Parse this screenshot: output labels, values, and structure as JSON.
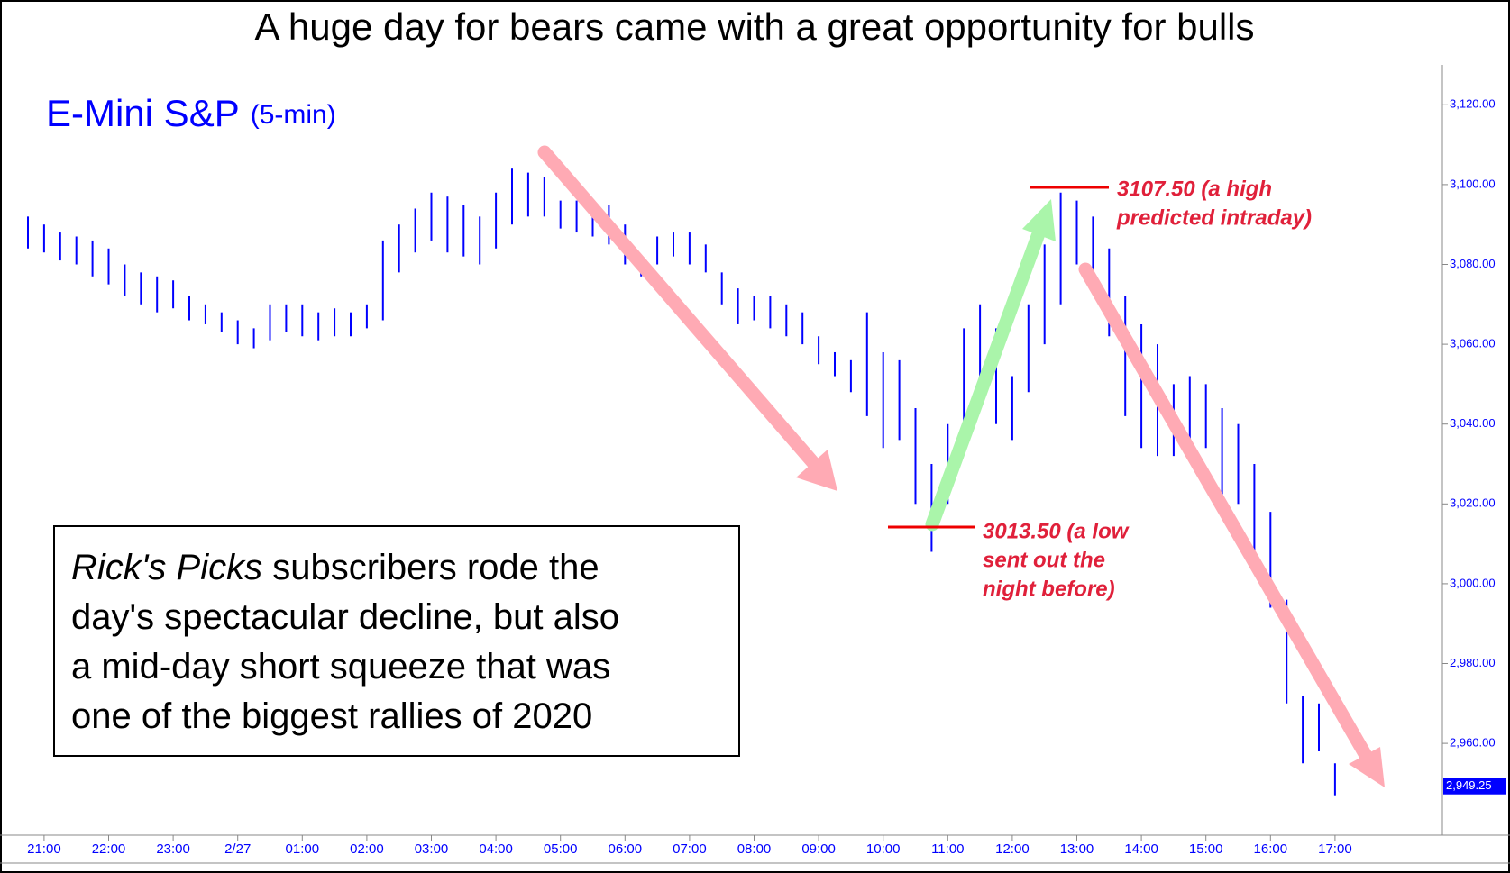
{
  "chart_data": {
    "type": "ohlc",
    "title": "A huge day for bears came with a great opportunity for bulls",
    "instrument": "E-Mini S&P",
    "interval": "(5-min)",
    "color": "#0000ff",
    "categories": [
      null,
      "21:00",
      null,
      null,
      null,
      "22:00",
      null,
      null,
      null,
      "23:00",
      null,
      null,
      null,
      "2/27",
      null,
      null,
      null,
      "01:00",
      null,
      null,
      null,
      "02:00",
      null,
      null,
      null,
      "03:00",
      null,
      null,
      null,
      "04:00",
      null,
      null,
      null,
      "05:00",
      null,
      null,
      null,
      "06:00",
      null,
      null,
      null,
      "07:00",
      null,
      null,
      null,
      "08:00",
      null,
      null,
      null,
      "09:00",
      null,
      null,
      null,
      "10:00",
      null,
      null,
      null,
      "11:00",
      null,
      null,
      null,
      "12:00",
      null,
      null,
      null,
      "13:00",
      null,
      null,
      null,
      "14:00",
      null,
      null,
      null,
      "15:00",
      null,
      null,
      null,
      "16:00",
      null,
      null,
      null,
      "17:00"
    ],
    "high": [
      3092,
      3090,
      3088,
      3087,
      3086,
      3084,
      3080,
      3078,
      3077,
      3076,
      3072,
      3070,
      3068,
      3066,
      3064,
      3070,
      3070,
      3070,
      3068,
      3069,
      3068,
      3070,
      3086,
      3090,
      3094,
      3098,
      3097,
      3095,
      3092,
      3098,
      3104,
      3103,
      3102,
      3096,
      3096,
      3094,
      3095,
      3090,
      3082,
      3087,
      3088,
      3088,
      3085,
      3078,
      3074,
      3072,
      3072,
      3070,
      3068,
      3062,
      3058,
      3056,
      3068,
      3058,
      3056,
      3044,
      3030,
      3040,
      3064,
      3070,
      3064,
      3052,
      3070,
      3085,
      3098,
      3096,
      3092,
      3084,
      3072,
      3065,
      3060,
      3050,
      3052,
      3050,
      3044,
      3040,
      3030,
      3018,
      2996,
      2972,
      2970,
      2955
    ],
    "low": [
      3084,
      3083,
      3081,
      3080,
      3077,
      3075,
      3072,
      3070,
      3068,
      3069,
      3066,
      3065,
      3063,
      3060,
      3059,
      3061,
      3063,
      3062,
      3061,
      3062,
      3062,
      3064,
      3066,
      3078,
      3083,
      3086,
      3083,
      3082,
      3080,
      3084,
      3090,
      3092,
      3092,
      3089,
      3088,
      3087,
      3085,
      3080,
      3077,
      3080,
      3082,
      3080,
      3078,
      3070,
      3065,
      3066,
      3064,
      3062,
      3060,
      3055,
      3052,
      3048,
      3042,
      3034,
      3036,
      3020,
      3008,
      3020,
      3038,
      3052,
      3040,
      3036,
      3048,
      3060,
      3070,
      3080,
      3075,
      3062,
      3042,
      3034,
      3032,
      3032,
      3036,
      3034,
      3022,
      3020,
      3008,
      2994,
      2970,
      2955,
      2958,
      2947
    ],
    "ylim": [
      2937,
      3130
    ],
    "yticks": [
      {
        "value": 2960,
        "label": "2,960.00"
      },
      {
        "value": 2980,
        "label": "2,980.00"
      },
      {
        "value": 3000,
        "label": "3,000.00"
      },
      {
        "value": 3020,
        "label": "3,020.00"
      },
      {
        "value": 3040,
        "label": "3,040.00"
      },
      {
        "value": 3060,
        "label": "3,060.00"
      },
      {
        "value": 3080,
        "label": "3,080.00"
      },
      {
        "value": 3100,
        "label": "3,100.00"
      },
      {
        "value": 3120,
        "label": "3,120.00"
      }
    ],
    "last_price": {
      "value": 2949.25,
      "label": "2,949.25"
    },
    "annotations": [
      {
        "lines": [
          "3107.50 (a high",
          "predicted intraday)"
        ]
      },
      {
        "lines": [
          "3013.50 (a low",
          "sent out the",
          "night before)"
        ]
      }
    ],
    "note": {
      "emphasis": "Rick's Picks",
      "lines": [
        " subscribers rode the",
        "day's spectacular decline, but also",
        "a mid-day short squeeze that was",
        "one of the biggest rallies of 2020"
      ]
    }
  }
}
